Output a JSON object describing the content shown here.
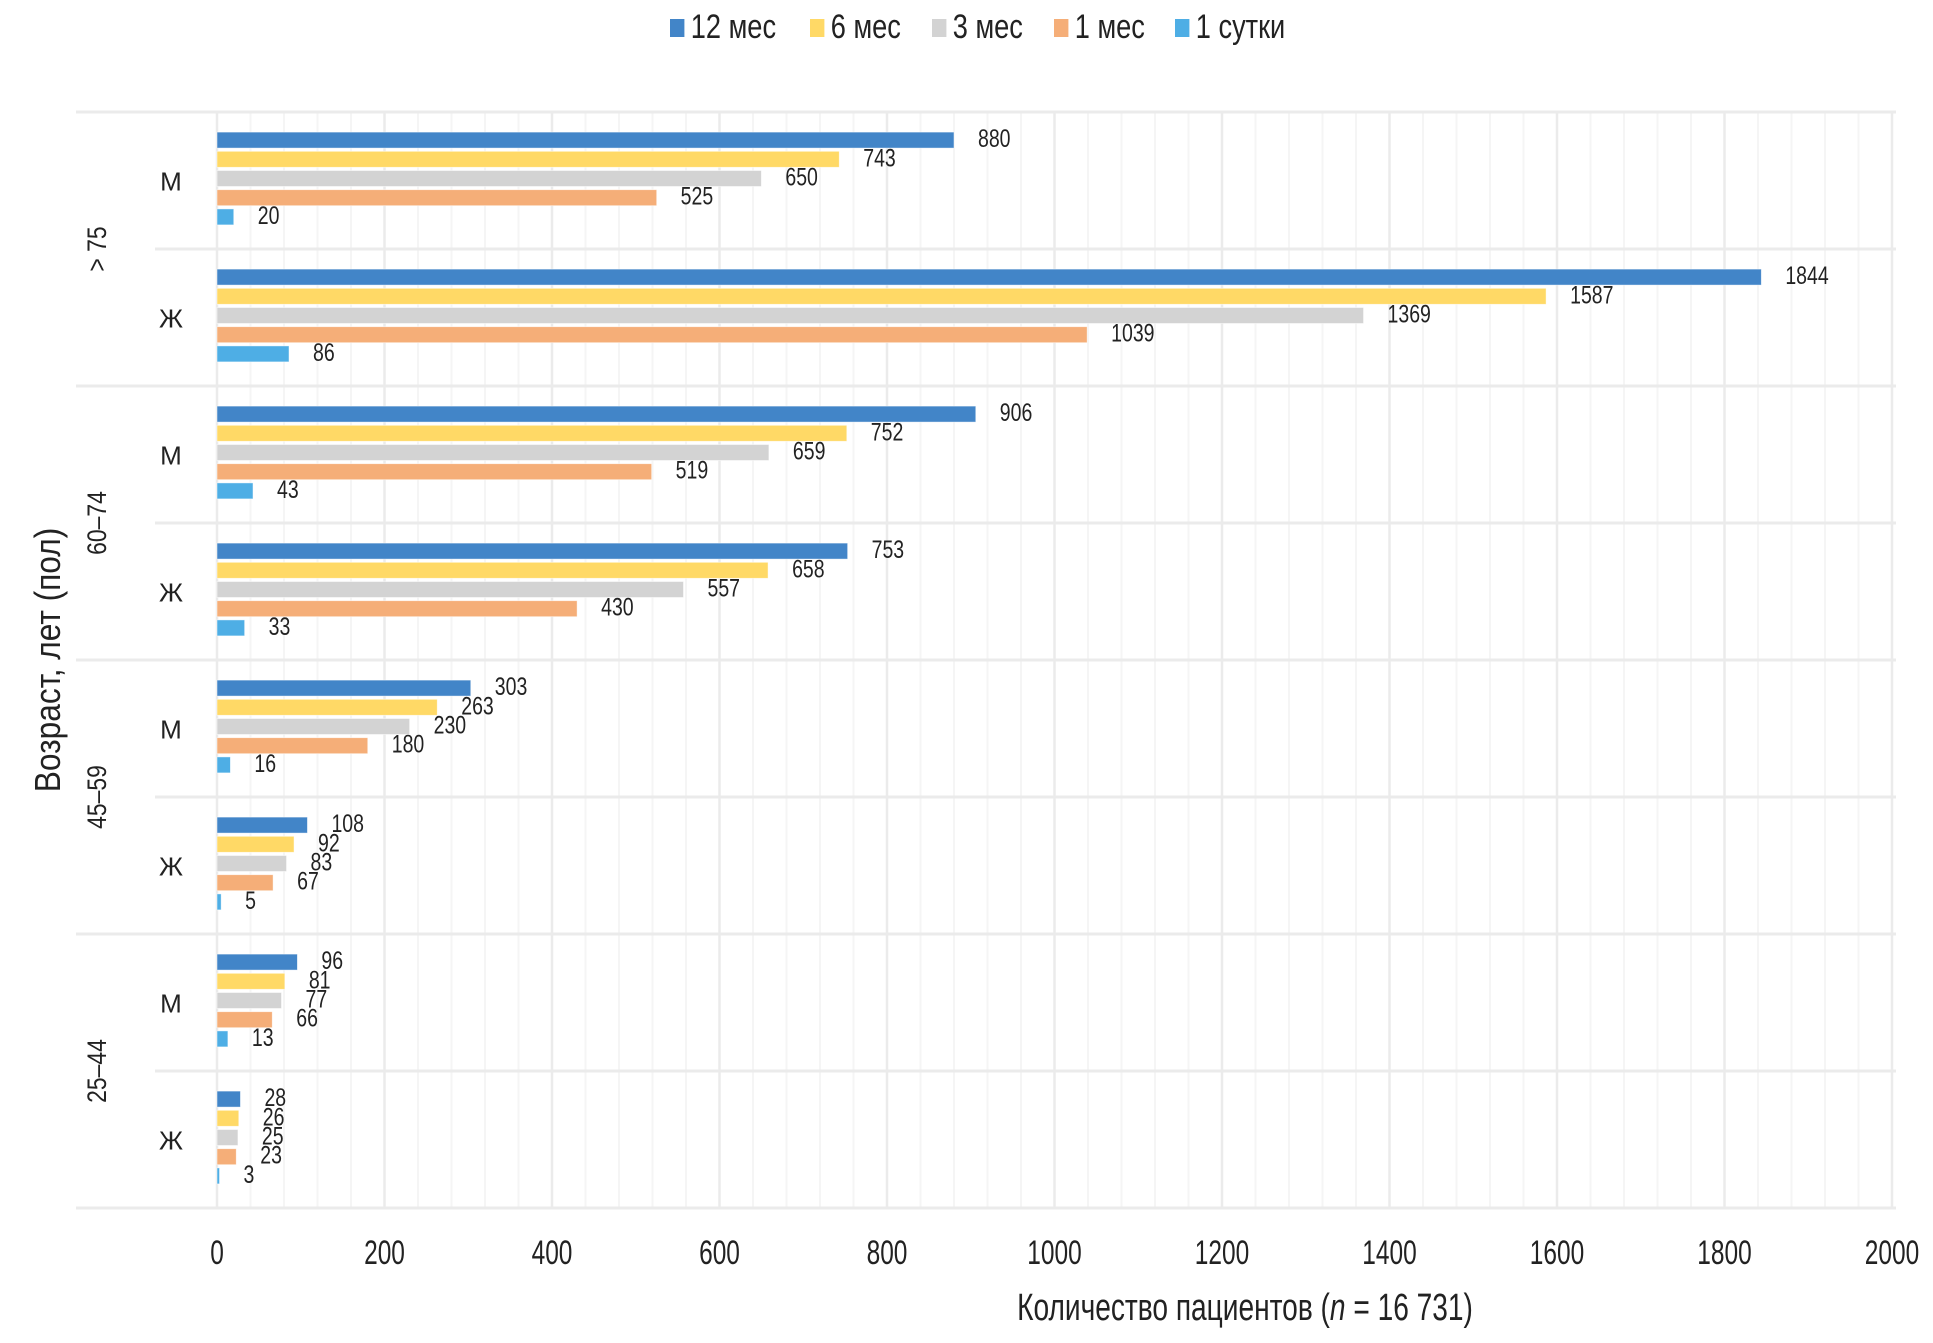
{
  "chart_data": {
    "type": "bar",
    "orientation": "horizontal",
    "title": "",
    "xlabel_prefix": "Количество пациентов (",
    "xlabel_italic": "n",
    "xlabel_suffix": " = 16 731)",
    "ylabel": "Возраст, лет (пол)",
    "xlim": [
      0,
      2000
    ],
    "xticks": [
      0,
      200,
      400,
      600,
      800,
      1000,
      1200,
      1400,
      1600,
      1800,
      2000
    ],
    "grid": true,
    "legend_position": "top-center",
    "groups": [
      {
        "age": "> 75",
        "subgroups": [
          "М",
          "Ж"
        ]
      },
      {
        "age": "60–74",
        "subgroups": [
          "М",
          "Ж"
        ]
      },
      {
        "age": "45–59",
        "subgroups": [
          "М",
          "Ж"
        ]
      },
      {
        "age": "25–44",
        "subgroups": [
          "М",
          "Ж"
        ]
      }
    ],
    "categories": [
      "> 75 М",
      "> 75 Ж",
      "60–74 М",
      "60–74 Ж",
      "45–59 М",
      "45–59 Ж",
      "25–44 М",
      "25–44 Ж"
    ],
    "series": [
      {
        "name": "12 мес",
        "color": "#4285C8",
        "values": [
          880,
          1844,
          906,
          753,
          303,
          108,
          96,
          28
        ]
      },
      {
        "name": "6 мес",
        "color": "#FFD966",
        "values": [
          743,
          1587,
          752,
          658,
          263,
          92,
          81,
          26
        ]
      },
      {
        "name": "3 мес",
        "color": "#D3D3D3",
        "values": [
          650,
          1369,
          659,
          557,
          230,
          83,
          77,
          25
        ]
      },
      {
        "name": "1 мес",
        "color": "#F5AE78",
        "values": [
          525,
          1039,
          519,
          430,
          180,
          67,
          66,
          23
        ]
      },
      {
        "name": "1 сутки",
        "color": "#4EAEE5",
        "values": [
          20,
          86,
          43,
          33,
          16,
          5,
          13,
          3
        ]
      }
    ]
  }
}
